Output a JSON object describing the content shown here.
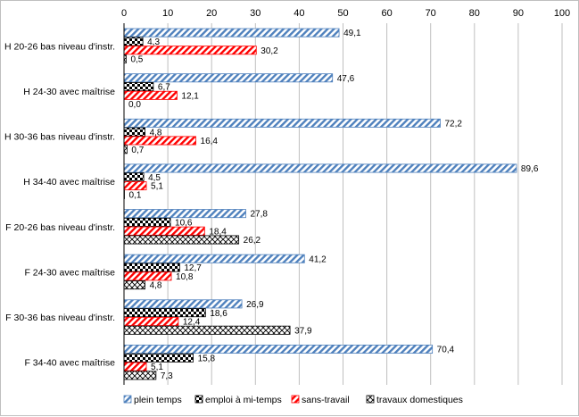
{
  "chart_data": {
    "type": "bar",
    "orientation": "horizontal",
    "title": "",
    "xlabel": "",
    "ylabel": "",
    "xlim": [
      0,
      100
    ],
    "x_ticks": [
      0,
      10,
      20,
      30,
      40,
      50,
      60,
      70,
      80,
      90,
      100
    ],
    "grid": true,
    "legend_position": "bottom",
    "categories": [
      "H 20-26 bas niveau d'instr.",
      "H 24-30 avec maîtrise",
      "H 30-36 bas niveau d'instr.",
      "H 34-40 avec maîtrise",
      "F 20-26 bas niveau d'instr.",
      "F 24-30 avec maîtrise",
      "F 30-36 bas niveau d'instr.",
      "F 34-40 avec maîtrise"
    ],
    "series": [
      {
        "name": "plein temps",
        "pattern": "diagonal-stripes",
        "color": "#4f81bd",
        "values": [
          49.1,
          47.6,
          72.2,
          89.6,
          27.8,
          41.2,
          26.9,
          70.4
        ],
        "labels": [
          "49,1",
          "47,6",
          "72,2",
          "89,6",
          "27,8",
          "41,2",
          "26,9",
          "70,4"
        ]
      },
      {
        "name": "emploi à mi-temps",
        "pattern": "checkerboard",
        "color": "#000000",
        "values": [
          4.3,
          6.7,
          4.8,
          4.5,
          10.6,
          12.7,
          18.6,
          15.8
        ],
        "labels": [
          "4,3",
          "6,7",
          "4,8",
          "4,5",
          "10,6",
          "12,7",
          "18,6",
          "15,8"
        ]
      },
      {
        "name": "sans-travail",
        "pattern": "diagonal-stripes",
        "color": "#ff0000",
        "values": [
          30.2,
          12.1,
          16.4,
          5.1,
          18.4,
          10.8,
          12.4,
          5.1
        ],
        "labels": [
          "30,2",
          "12,1",
          "16,4",
          "5,1",
          "18,4",
          "10,8",
          "12,4",
          "5,1"
        ]
      },
      {
        "name": "travaux domestiques",
        "pattern": "crosshatch",
        "color": "#000000",
        "values": [
          0.5,
          0.0,
          0.7,
          0.1,
          26.2,
          4.8,
          37.9,
          7.3
        ],
        "labels": [
          "0,5",
          "0,0",
          "0,7",
          "0,1",
          "26,2",
          "4,8",
          "37,9",
          "7,3"
        ]
      }
    ]
  }
}
